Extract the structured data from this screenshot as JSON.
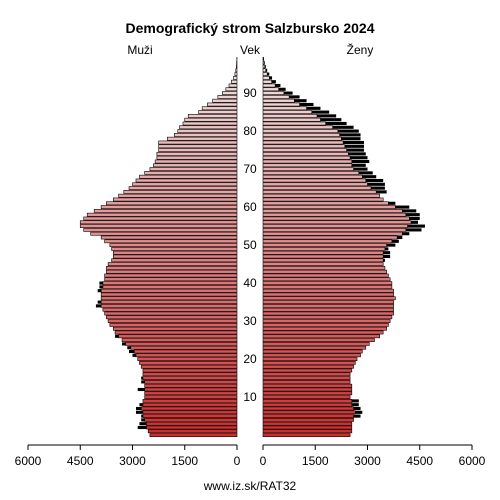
{
  "chart_data": {
    "type": "bar",
    "orientation": "horizontal-pyramid",
    "title": "Demografický strom Salzbursko 2024",
    "left_label": "Muži",
    "center_label": "Vek",
    "right_label": "Ženy",
    "source": "www.iz.sk/RAT32",
    "age_ticks": [
      "10",
      "20",
      "30",
      "40",
      "50",
      "60",
      "70",
      "80",
      "90"
    ],
    "x_ticks_left": [
      "6000",
      "4500",
      "3000",
      "1500",
      "0"
    ],
    "x_ticks_right": [
      "0",
      "1500",
      "3000",
      "4500",
      "6000"
    ],
    "xlim": [
      0,
      6000
    ],
    "age_range": [
      0,
      100
    ],
    "series": [
      {
        "name": "Muži",
        "fill_color_young": "#d42a2a",
        "fill_color_old": "#f2dede",
        "values": [
          2500,
          2550,
          2600,
          2600,
          2650,
          2700,
          2700,
          2750,
          2700,
          2700,
          2650,
          2650,
          2650,
          2650,
          2650,
          2700,
          2700,
          2700,
          2750,
          2800,
          2850,
          2900,
          2950,
          3050,
          3200,
          3300,
          3400,
          3500,
          3550,
          3650,
          3700,
          3750,
          3800,
          3850,
          3900,
          3900,
          3900,
          3900,
          3900,
          3850,
          3850,
          3800,
          3800,
          3750,
          3750,
          3700,
          3600,
          3550,
          3550,
          3600,
          3650,
          3800,
          3900,
          4200,
          4400,
          4500,
          4500,
          4400,
          4300,
          4100,
          3900,
          3750,
          3550,
          3400,
          3250,
          3100,
          3000,
          2900,
          2800,
          2650,
          2500,
          2400,
          2350,
          2300,
          2300,
          2250,
          2250,
          2250,
          2000,
          1800,
          1700,
          1650,
          1550,
          1500,
          1400,
          1100,
          1000,
          850,
          700,
          550,
          420,
          320,
          230,
          160,
          100,
          60,
          35,
          20,
          10,
          5
        ],
        "surplus": [
          0,
          0,
          250,
          200,
          100,
          50,
          200,
          150,
          100,
          0,
          0,
          0,
          200,
          0,
          100,
          50,
          0,
          0,
          0,
          0,
          0,
          100,
          150,
          100,
          100,
          0,
          100,
          0,
          0,
          0,
          0,
          0,
          0,
          0,
          150,
          100,
          0,
          0,
          100,
          100,
          100,
          0,
          0,
          0,
          0,
          0,
          0,
          0,
          0,
          0,
          0,
          0,
          0,
          0,
          0,
          0,
          0,
          0,
          0,
          0,
          0,
          0,
          0,
          0,
          0,
          0,
          0,
          0,
          0,
          0,
          0,
          0,
          0,
          0,
          0,
          0,
          0,
          0,
          0,
          0,
          0,
          0,
          0,
          0,
          0,
          0,
          0,
          0,
          0,
          0,
          0,
          0,
          0,
          0,
          0,
          0,
          0,
          0,
          0,
          0
        ]
      },
      {
        "name": "Ženy",
        "fill_color_young": "#d42a2a",
        "fill_color_old": "#f2dede",
        "values": [
          2500,
          2550,
          2550,
          2550,
          2600,
          2600,
          2650,
          2600,
          2550,
          2550,
          2500,
          2550,
          2550,
          2550,
          2500,
          2500,
          2500,
          2550,
          2600,
          2650,
          2700,
          2800,
          2850,
          2950,
          3050,
          3200,
          3350,
          3450,
          3550,
          3600,
          3650,
          3700,
          3750,
          3750,
          3750,
          3750,
          3800,
          3750,
          3750,
          3700,
          3700,
          3650,
          3600,
          3550,
          3500,
          3450,
          3450,
          3450,
          3450,
          3500,
          3550,
          3700,
          3850,
          4000,
          4100,
          4150,
          4250,
          4200,
          4100,
          4000,
          3800,
          3600,
          3450,
          3350,
          3250,
          3100,
          3000,
          2950,
          2850,
          2750,
          2600,
          2550,
          2550,
          2500,
          2450,
          2400,
          2350,
          2300,
          2250,
          2200,
          2150,
          2000,
          1800,
          1650,
          1550,
          1400,
          1250,
          1050,
          900,
          750,
          600,
          450,
          350,
          250,
          180,
          120,
          80,
          50,
          30,
          15
        ],
        "surplus": [
          0,
          0,
          0,
          0,
          0,
          200,
          200,
          200,
          200,
          200,
          0,
          0,
          0,
          0,
          0,
          0,
          0,
          0,
          0,
          0,
          0,
          0,
          0,
          0,
          0,
          0,
          0,
          0,
          0,
          0,
          0,
          0,
          0,
          0,
          0,
          0,
          0,
          0,
          0,
          0,
          0,
          0,
          0,
          0,
          0,
          0,
          50,
          200,
          200,
          100,
          250,
          200,
          150,
          200,
          450,
          500,
          200,
          300,
          400,
          400,
          400,
          200,
          0,
          0,
          300,
          400,
          500,
          500,
          400,
          400,
          400,
          400,
          500,
          500,
          500,
          500,
          550,
          600,
          550,
          600,
          600,
          600,
          600,
          600,
          550,
          500,
          400,
          400,
          350,
          300,
          250,
          200,
          150,
          120,
          80,
          60,
          40,
          30,
          20,
          10
        ]
      }
    ]
  }
}
